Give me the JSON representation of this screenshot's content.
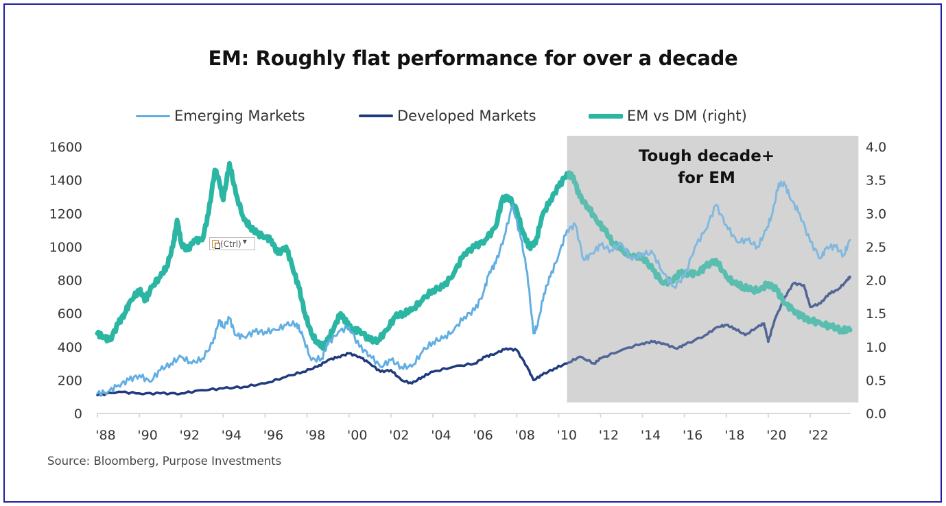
{
  "chart_data": {
    "type": "line",
    "title": "EM: Roughly flat performance for over a decade",
    "source": "Source: Bloomberg, Purpose Investments",
    "xlabel": "",
    "ylabel": "",
    "y2label": "",
    "xlim": [
      1988,
      2023.9
    ],
    "ylim": [
      0,
      1600
    ],
    "y2lim": [
      0,
      4.0
    ],
    "x_tick_labels": [
      "'88",
      "'90",
      "'92",
      "'94",
      "'96",
      "'98",
      "'00",
      "'02",
      "'04",
      "'06",
      "'08",
      "'10",
      "'12",
      "'14",
      "'16",
      "'18",
      "'20",
      "'22"
    ],
    "x_tick_years": [
      1988,
      1990,
      1992,
      1994,
      1996,
      1998,
      2000,
      2002,
      2004,
      2006,
      2008,
      2010,
      2012,
      2014,
      2016,
      2018,
      2020,
      2022
    ],
    "y_tick_labels": [
      "0",
      "200",
      "400",
      "600",
      "800",
      "1000",
      "1200",
      "1400",
      "1600"
    ],
    "y_ticks": [
      0,
      200,
      400,
      600,
      800,
      1000,
      1200,
      1400,
      1600
    ],
    "y2_tick_labels": [
      "0.0",
      "0.5",
      "1.0",
      "1.5",
      "2.0",
      "2.5",
      "3.0",
      "3.5",
      "4.0"
    ],
    "y2_ticks": [
      0,
      0.5,
      1.0,
      1.5,
      2.0,
      2.5,
      3.0,
      3.5,
      4.0
    ],
    "grid": false,
    "legend_position": "top-center",
    "annotation": {
      "lines": [
        "Tough decade+",
        "for EM"
      ],
      "shaded_x_range": [
        2010.4,
        2024.3
      ],
      "shade_color": "#d4d4d4"
    },
    "series": [
      {
        "name": "Emerging Markets",
        "axis": "left",
        "color": "#62aee3",
        "x": [
          1988.0,
          1988.5,
          1989.0,
          1989.5,
          1990.0,
          1990.5,
          1991.0,
          1991.5,
          1992.0,
          1992.5,
          1993.0,
          1993.5,
          1993.8,
          1994.0,
          1994.3,
          1994.6,
          1995.0,
          1995.5,
          1996.0,
          1996.5,
          1997.0,
          1997.5,
          1997.8,
          1998.2,
          1998.7,
          1999.0,
          1999.5,
          2000.0,
          2000.5,
          2001.0,
          2001.5,
          2002.0,
          2002.5,
          2003.0,
          2003.5,
          2004.0,
          2004.5,
          2005.0,
          2005.5,
          2006.0,
          2006.4,
          2006.7,
          2007.0,
          2007.4,
          2007.8,
          2008.2,
          2008.5,
          2008.8,
          2009.0,
          2009.3,
          2009.6,
          2010.0,
          2010.4,
          2010.8,
          2011.2,
          2011.6,
          2012.0,
          2012.5,
          2013.0,
          2013.5,
          2014.0,
          2014.5,
          2015.0,
          2015.5,
          2016.0,
          2016.5,
          2017.0,
          2017.5,
          2018.0,
          2018.5,
          2019.0,
          2019.5,
          2019.9,
          2020.2,
          2020.5,
          2020.8,
          2021.1,
          2021.5,
          2022.0,
          2022.5,
          2022.8,
          2023.2,
          2023.6,
          2023.9
        ],
        "values": [
          120,
          130,
          170,
          200,
          230,
          190,
          260,
          300,
          340,
          300,
          330,
          420,
          560,
          520,
          570,
          470,
          460,
          490,
          490,
          500,
          530,
          540,
          460,
          320,
          330,
          420,
          490,
          520,
          400,
          350,
          280,
          320,
          280,
          280,
          370,
          430,
          450,
          500,
          580,
          620,
          720,
          850,
          900,
          1060,
          1250,
          1050,
          850,
          480,
          530,
          720,
          820,
          950,
          1100,
          1130,
          920,
          960,
          1010,
          980,
          1020,
          920,
          960,
          960,
          840,
          760,
          820,
          1000,
          1100,
          1250,
          1130,
          1030,
          1040,
          1000,
          1100,
          1200,
          1380,
          1370,
          1280,
          1200,
          1030,
          930,
          1000,
          1000,
          950,
          1040
        ]
      },
      {
        "name": "Developed Markets",
        "axis": "left",
        "color": "#1f3b7e",
        "x": [
          1988.0,
          1989.0,
          1990.0,
          1991.0,
          1992.0,
          1993.0,
          1994.0,
          1995.0,
          1996.0,
          1997.0,
          1997.8,
          1998.5,
          1999.0,
          1999.5,
          2000.0,
          2000.5,
          2001.0,
          2001.5,
          2002.0,
          2002.5,
          2003.0,
          2003.5,
          2004.0,
          2005.0,
          2006.0,
          2006.5,
          2007.0,
          2007.5,
          2008.0,
          2008.5,
          2008.8,
          2009.2,
          2009.8,
          2010.4,
          2011.0,
          2011.7,
          2012.0,
          2013.0,
          2014.0,
          2014.5,
          2015.0,
          2015.6,
          2016.0,
          2017.0,
          2017.6,
          2018.0,
          2018.4,
          2018.9,
          2019.5,
          2019.8,
          2020.0,
          2020.3,
          2020.8,
          2021.2,
          2021.7,
          2022.0,
          2022.5,
          2022.9,
          2023.3,
          2023.7,
          2023.9
        ],
        "values": [
          110,
          130,
          120,
          120,
          120,
          140,
          150,
          160,
          180,
          220,
          250,
          280,
          320,
          340,
          360,
          340,
          300,
          250,
          260,
          200,
          180,
          220,
          250,
          280,
          300,
          340,
          360,
          390,
          380,
          280,
          200,
          230,
          270,
          300,
          340,
          300,
          330,
          380,
          420,
          430,
          420,
          390,
          410,
          470,
          520,
          530,
          510,
          470,
          520,
          540,
          430,
          560,
          700,
          780,
          770,
          640,
          660,
          720,
          740,
          790,
          820
        ]
      },
      {
        "name": "EM vs DM (right)",
        "axis": "right",
        "color": "#2bb5a3",
        "x": [
          1988.0,
          1988.3,
          1988.6,
          1989.0,
          1989.3,
          1989.6,
          1990.0,
          1990.3,
          1990.6,
          1991.0,
          1991.3,
          1991.6,
          1991.8,
          1992.0,
          1992.3,
          1992.6,
          1993.0,
          1993.3,
          1993.6,
          1993.8,
          1994.0,
          1994.3,
          1994.6,
          1995.0,
          1995.3,
          1995.6,
          1996.0,
          1996.3,
          1996.6,
          1997.0,
          1997.3,
          1997.6,
          1997.9,
          1998.2,
          1998.5,
          1998.8,
          1999.0,
          1999.3,
          1999.6,
          1999.9,
          2000.2,
          2000.5,
          2001.0,
          2001.4,
          2001.8,
          2002.2,
          2002.6,
          2003.0,
          2003.5,
          2004.0,
          2004.5,
          2005.0,
          2005.5,
          2006.0,
          2006.5,
          2007.0,
          2007.3,
          2007.6,
          2008.0,
          2008.3,
          2008.6,
          2008.9,
          2009.2,
          2009.6,
          2010.0,
          2010.4,
          2010.7,
          2011.0,
          2011.4,
          2011.8,
          2012.2,
          2012.6,
          2013.0,
          2013.5,
          2014.0,
          2014.5,
          2015.0,
          2015.4,
          2015.8,
          2016.2,
          2016.6,
          2017.0,
          2017.5,
          2018.0,
          2018.4,
          2018.8,
          2019.2,
          2019.6,
          2020.0,
          2020.4,
          2020.8,
          2021.2,
          2021.6,
          2022.0,
          2022.5,
          2023.0,
          2023.5,
          2023.9
        ],
        "values": [
          1.2,
          1.15,
          1.1,
          1.35,
          1.5,
          1.7,
          1.85,
          1.7,
          1.9,
          2.05,
          2.2,
          2.5,
          2.9,
          2.55,
          2.45,
          2.6,
          2.6,
          3.0,
          3.65,
          3.5,
          3.2,
          3.75,
          3.3,
          2.9,
          2.8,
          2.7,
          2.65,
          2.6,
          2.4,
          2.5,
          2.2,
          1.9,
          1.5,
          1.2,
          1.05,
          1.0,
          1.1,
          1.3,
          1.5,
          1.35,
          1.25,
          1.25,
          1.1,
          1.1,
          1.25,
          1.45,
          1.5,
          1.55,
          1.7,
          1.85,
          1.9,
          2.1,
          2.4,
          2.5,
          2.6,
          2.8,
          3.2,
          3.25,
          3.05,
          2.7,
          2.5,
          2.55,
          2.95,
          3.2,
          3.4,
          3.6,
          3.55,
          3.25,
          3.1,
          2.9,
          2.75,
          2.55,
          2.45,
          2.35,
          2.35,
          2.15,
          1.95,
          2.0,
          2.1,
          2.1,
          2.1,
          2.2,
          2.3,
          2.05,
          1.95,
          1.9,
          1.85,
          1.85,
          1.95,
          1.85,
          1.65,
          1.55,
          1.45,
          1.4,
          1.35,
          1.3,
          1.25,
          1.25
        ]
      }
    ]
  },
  "popup": {
    "label": "(Ctrl)",
    "icon": "clipboard-paste-icon"
  }
}
